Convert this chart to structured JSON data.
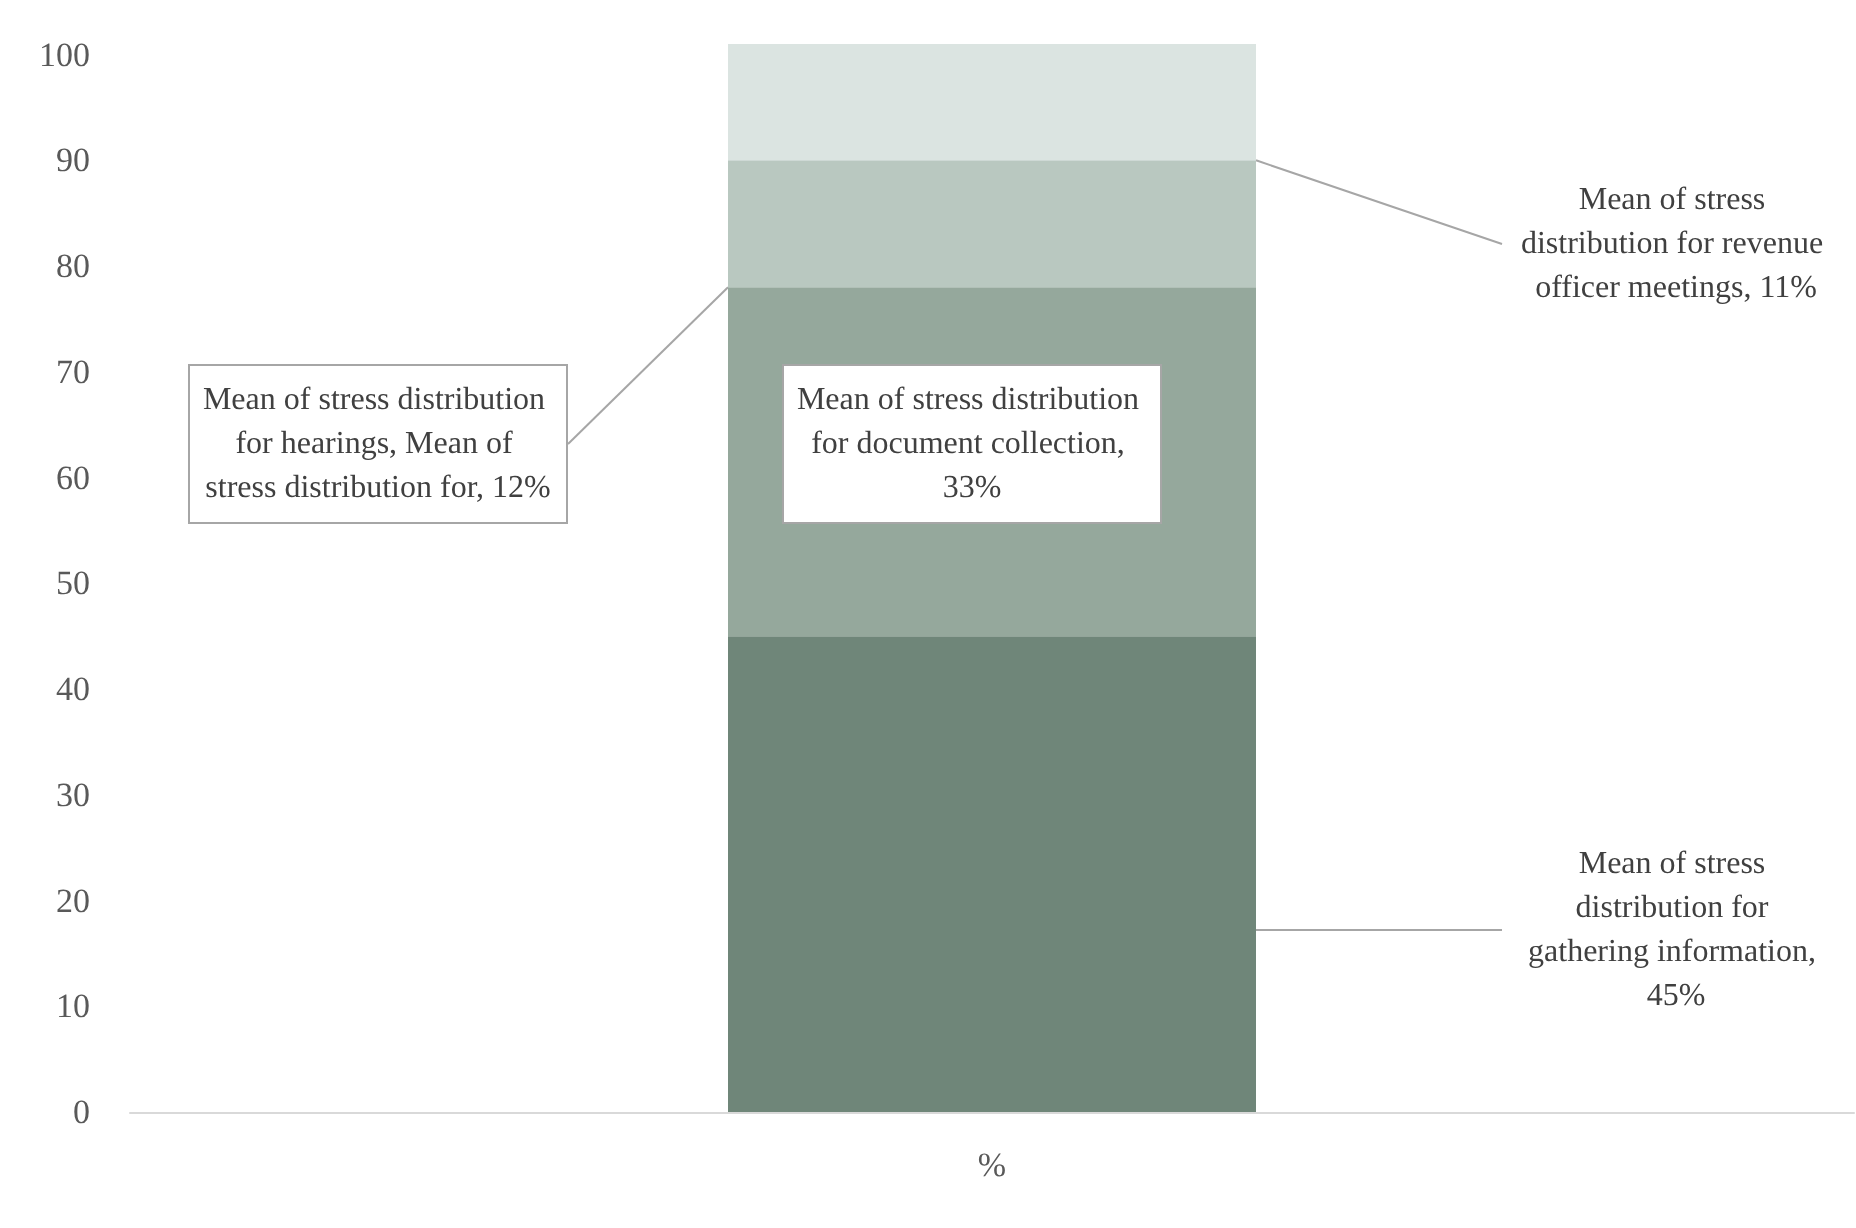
{
  "chart_data": {
    "type": "bar",
    "stacked": true,
    "categories": [
      "%"
    ],
    "series": [
      {
        "color": "#6f8679",
        "values": [
          45
        ],
        "value_labels": [
          "Mean of stress distribution for gathering information, 45%"
        ]
      },
      {
        "color": "#95a89c",
        "values": [
          33
        ],
        "value_labels": [
          "Mean of stress distribution for document collection, 33%"
        ]
      },
      {
        "color": "#b9c8c0",
        "values": [
          12
        ],
        "value_labels": [
          "Mean of stress distribution for hearings, Mean of stress distribution for, 12%"
        ]
      },
      {
        "color": "#dbe4e1",
        "values": [
          11
        ],
        "value_labels": [
          "Mean of stress distribution for revenue officer meetings, 11%"
        ]
      }
    ],
    "ylim": [
      0,
      101
    ],
    "yticks": [
      0,
      10,
      20,
      30,
      40,
      50,
      60,
      70,
      80,
      90,
      100
    ],
    "grid": false
  }
}
